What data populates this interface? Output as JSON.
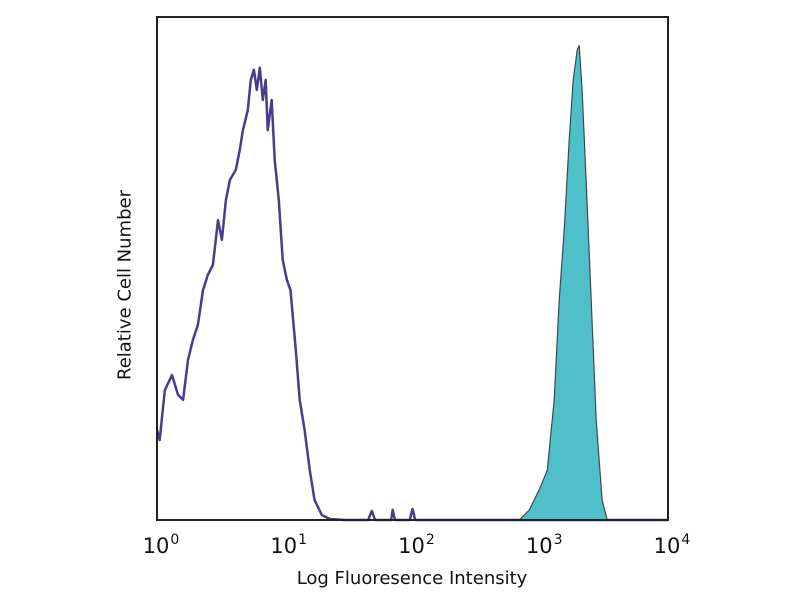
{
  "chart_data": {
    "type": "area",
    "title": "",
    "xlabel": "Log Fluoresence Intensity",
    "ylabel": "Relative Cell Number",
    "xscale": "log",
    "xlim": [
      1,
      10000
    ],
    "ylim": [
      0,
      100
    ],
    "grid": false,
    "x_ticks": [
      {
        "base": "10",
        "exp": "0"
      },
      {
        "base": "10",
        "exp": "1"
      },
      {
        "base": "10",
        "exp": "2"
      },
      {
        "base": "10",
        "exp": "3"
      },
      {
        "base": "10",
        "exp": "4"
      }
    ],
    "series": [
      {
        "style": "outline",
        "color": "#4b3b8c",
        "x": [
          1.0,
          1.05,
          1.15,
          1.31,
          1.46,
          1.6,
          1.75,
          1.91,
          2.09,
          2.29,
          2.5,
          2.74,
          3.0,
          3.22,
          3.46,
          3.72,
          4.14,
          4.45,
          4.7,
          5.14,
          5.42,
          5.73,
          6.04,
          6.38,
          6.73,
          7.1,
          7.36,
          7.91,
          8.35,
          8.98,
          9.64,
          10.4,
          11.1,
          12.2,
          13.1,
          14.3,
          15.7,
          17.1,
          19.5,
          22.5,
          29.4,
          45,
          48,
          51,
          68,
          70,
          73,
          95,
          100,
          105,
          10000
        ],
        "y": [
          17.9,
          15.9,
          25.8,
          28.8,
          24.9,
          23.9,
          31.8,
          35.8,
          38.8,
          45.7,
          48.7,
          50.7,
          59.6,
          55.7,
          63.6,
          67.6,
          69.6,
          73.6,
          77.5,
          81.5,
          87.5,
          89.5,
          85.5,
          89.9,
          83.5,
          87.5,
          77.5,
          83.5,
          71.6,
          63.6,
          51.7,
          47.7,
          45.7,
          33.8,
          23.9,
          17.9,
          9.9,
          4.0,
          1.0,
          0.2,
          0,
          0,
          1.8,
          0,
          0,
          2.0,
          0,
          0,
          2.2,
          0,
          0
        ]
      },
      {
        "style": "filled",
        "color": "#4fc0c9",
        "x": [
          686,
          821,
          982,
          1135,
          1286,
          1406,
          1540,
          1686,
          1811,
          1945,
          2017,
          2128,
          2287,
          2503,
          2740,
          3051,
          3340
        ],
        "y": [
          0,
          2.0,
          6.0,
          9.9,
          23.9,
          43.7,
          57.7,
          75.5,
          87.5,
          93.4,
          94.4,
          85.5,
          67.6,
          43.7,
          19.9,
          4.0,
          0
        ]
      }
    ]
  }
}
